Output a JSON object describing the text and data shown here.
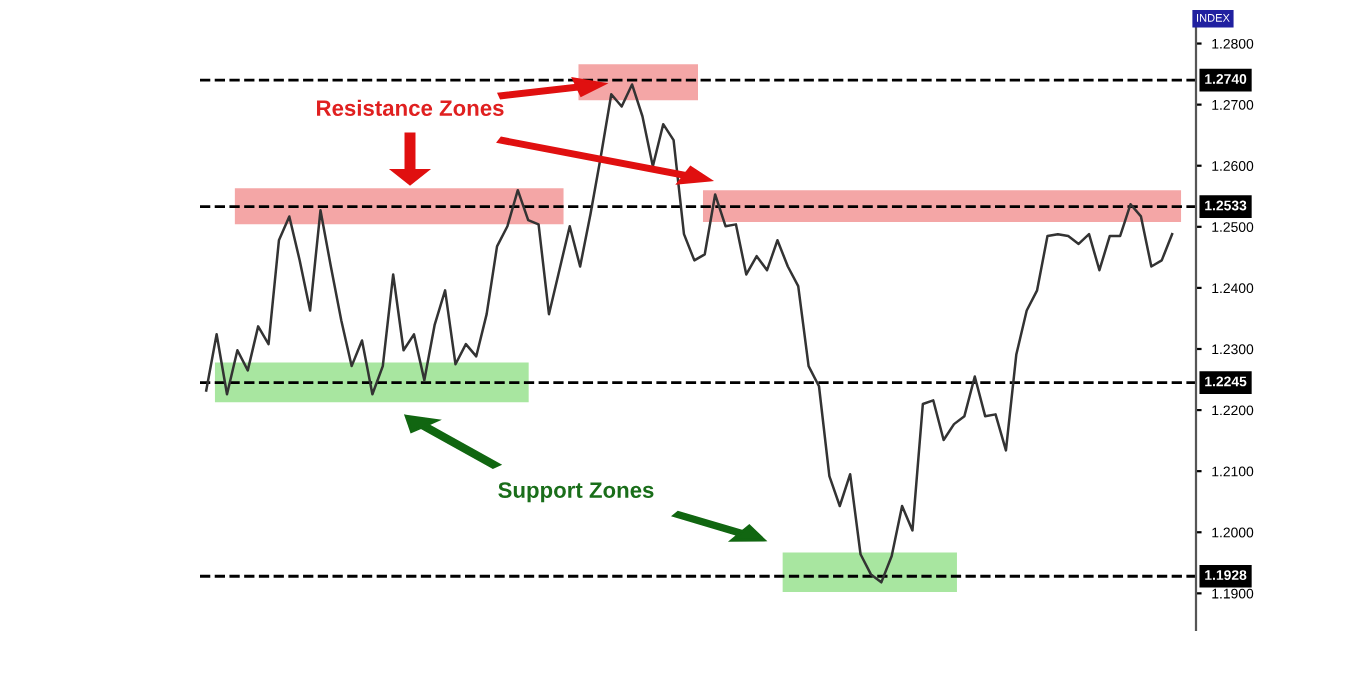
{
  "chart_data": {
    "type": "line",
    "categories": [
      null,
      null,
      null,
      null,
      null,
      null,
      null,
      null,
      null,
      null,
      null,
      null,
      null,
      null,
      null,
      null,
      null,
      null,
      null,
      null,
      null,
      null,
      null,
      null,
      null,
      null,
      null,
      null,
      null,
      null,
      null,
      null,
      null,
      null,
      null,
      null,
      null,
      null,
      null,
      null,
      null,
      null,
      null,
      null,
      null,
      null,
      null,
      null,
      null,
      null,
      null,
      null,
      null,
      null,
      null,
      null,
      null,
      null,
      null,
      null,
      null,
      null,
      null,
      null,
      null,
      null,
      null,
      null,
      null,
      null,
      null,
      null,
      null,
      null,
      null,
      null,
      null,
      null,
      null,
      null,
      null,
      null,
      null,
      null,
      null,
      null,
      null,
      null,
      null,
      null,
      null,
      null,
      null,
      null
    ],
    "series": [
      {
        "color": "#333333",
        "values": [
          1.2232,
          1.2324,
          1.2226,
          1.2298,
          1.2265,
          1.2337,
          1.2308,
          1.2478,
          1.2517,
          1.2445,
          1.2363,
          1.2527,
          1.2435,
          1.2347,
          1.2272,
          1.2314,
          1.2226,
          1.2272,
          1.2422,
          1.2298,
          1.2324,
          1.2249,
          1.234,
          1.2396,
          1.2275,
          1.2308,
          1.2288,
          1.2357,
          1.2468,
          1.2501,
          1.256,
          1.2511,
          1.2504,
          1.2357,
          1.2429,
          1.2501,
          1.2435,
          1.2521,
          1.2616,
          1.2717,
          1.2697,
          1.2733,
          1.2681,
          1.2599,
          1.2668,
          1.2642,
          1.2488,
          1.2445,
          1.2455,
          1.2553,
          1.2501,
          1.2504,
          1.2422,
          1.2452,
          1.2429,
          1.2478,
          1.2435,
          1.2403,
          1.2272,
          1.2239,
          1.2092,
          1.2043,
          1.2095,
          1.1964,
          1.1931,
          1.1918,
          1.1961,
          1.2043,
          1.2003,
          1.221,
          1.2216,
          1.2151,
          1.2177,
          1.219,
          1.2255,
          1.219,
          1.2193,
          1.2134,
          1.2291,
          1.2363,
          1.2396,
          1.2485,
          1.2488,
          1.2485,
          1.2472,
          1.2488,
          1.2429,
          1.2485,
          1.2485,
          1.2537,
          1.2517,
          1.2435,
          1.2445,
          1.2488
        ]
      }
    ],
    "ylim": [
      1.184,
      1.2832
    ],
    "yticks": [
      {
        "value": 1.19,
        "label": "1.1900"
      },
      {
        "value": 1.2,
        "label": "1.2000"
      },
      {
        "value": 1.21,
        "label": "1.2100"
      },
      {
        "value": 1.22,
        "label": "1.2200"
      },
      {
        "value": 1.23,
        "label": "1.2300"
      },
      {
        "value": 1.24,
        "label": "1.2400"
      },
      {
        "value": 1.25,
        "label": "1.2500"
      },
      {
        "value": 1.26,
        "label": "1.2600"
      },
      {
        "value": 1.27,
        "label": "1.2700"
      },
      {
        "value": 1.28,
        "label": "1.2800"
      }
    ],
    "tick_labels": "y",
    "grid": false,
    "legend": false,
    "line_style": "solid",
    "marker": "none",
    "ref_lines": [
      {
        "axis": "y",
        "value": 1.274,
        "label": "1.2740",
        "line_style": "dashed",
        "color": "#000000"
      },
      {
        "axis": "y",
        "value": 1.2533,
        "label": "1.2533",
        "line_style": "dashed",
        "color": "#000000"
      },
      {
        "axis": "y",
        "value": 1.2245,
        "label": "1.2245",
        "line_style": "dashed",
        "color": "#000000"
      },
      {
        "axis": "y",
        "value": 1.1928,
        "label": "1.1928",
        "line_style": "dashed",
        "color": "#000000"
      }
    ],
    "bands": [
      {
        "axis": "y",
        "from": 1.2707,
        "to": 1.2766,
        "color": "#f4a6a6"
      },
      {
        "axis": "y",
        "from": 1.2504,
        "to": 1.2563,
        "color": "#f4a6a6"
      },
      {
        "axis": "y",
        "from": 1.2508,
        "to": 1.256,
        "color": "#f4a6a6"
      },
      {
        "axis": "y",
        "from": 1.2213,
        "to": 1.2278,
        "color": "#a8e6a0"
      },
      {
        "axis": "y",
        "from": 1.1902,
        "to": 1.1967,
        "color": "#a8e6a0"
      }
    ],
    "annotations": [
      "Resistance Zones",
      "Support Zones",
      "INDEX"
    ]
  }
}
